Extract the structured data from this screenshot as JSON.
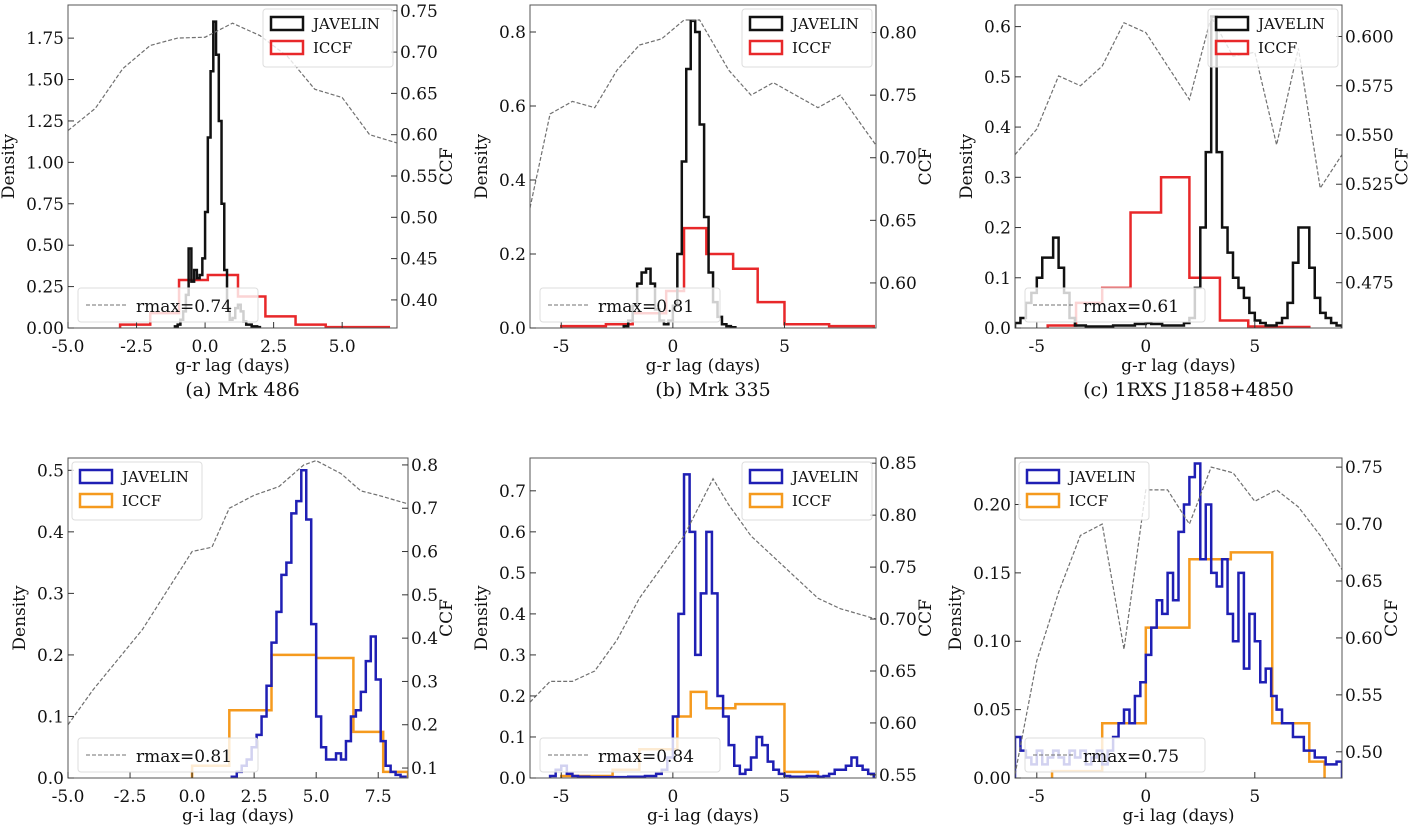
{
  "colors": {
    "javelin_top": "#111111",
    "iccf_top": "#e8282a",
    "javelin_bottom": "#1f1fb4",
    "iccf_bottom": "#f59a1e",
    "ccf": "#707070"
  },
  "chart_data": [
    {
      "type": "bar",
      "caption": "(a) Mrk 486",
      "xlabel": "g-r lag (days)",
      "ylabel": "Density",
      "y2label": "CCF",
      "xlim": [
        -5,
        7
      ],
      "ylim": [
        0,
        1.95
      ],
      "y2lim": [
        0.366,
        0.757
      ],
      "xticks": [
        "-5.0",
        "-2.5",
        "0.0",
        "2.5",
        "5.0"
      ],
      "xtick_values": [
        -5,
        -2.5,
        0,
        2.5,
        5
      ],
      "yticks": [
        "0.00",
        "0.25",
        "0.50",
        "0.75",
        "1.00",
        "1.25",
        "1.50",
        "1.75"
      ],
      "ytick_values": [
        0,
        0.25,
        0.5,
        0.75,
        1.0,
        1.25,
        1.5,
        1.75
      ],
      "y2ticks": [
        "0.40",
        "0.45",
        "0.50",
        "0.55",
        "0.60",
        "0.65",
        "0.70",
        "0.75"
      ],
      "y2tick_values": [
        0.4,
        0.45,
        0.5,
        0.55,
        0.6,
        0.65,
        0.7,
        0.75
      ],
      "legend": [
        "JAVELIN",
        "ICCF"
      ],
      "legend_placement": "top-right",
      "rmax_label": "rmax=0.74",
      "rmax_placement": "lower-left",
      "javelin": {
        "x_start": -1.1,
        "bin_width": 0.1,
        "y": [
          0.01,
          0.02,
          0.05,
          0.1,
          0.2,
          0.48,
          0.28,
          0.35,
          0.3,
          0.32,
          0.42,
          0.7,
          1.15,
          1.55,
          1.85,
          1.65,
          1.25,
          0.75,
          0.35,
          0.12,
          0.05,
          0.06,
          0.12,
          0.14,
          0.1,
          0.04,
          0.02,
          0.02,
          0.01,
          0.01,
          0.005
        ]
      },
      "iccf": {
        "edges": [
          -3.1,
          -2.0,
          -0.95,
          0.1,
          1.2,
          2.2,
          3.3,
          4.4,
          6.7
        ],
        "y": [
          0.02,
          0.09,
          0.29,
          0.32,
          0.19,
          0.07,
          0.02,
          0.005
        ]
      },
      "ccf": {
        "x": [
          -5,
          -4,
          -3,
          -2,
          -1,
          0,
          1,
          2,
          3,
          4,
          5,
          6,
          7
        ],
        "y": [
          0.605,
          0.632,
          0.68,
          0.708,
          0.717,
          0.718,
          0.735,
          0.72,
          0.695,
          0.655,
          0.645,
          0.6,
          0.59
        ]
      }
    },
    {
      "type": "bar",
      "caption": "(b) Mrk 335",
      "xlabel": "g-r lag (days)",
      "ylabel": "Density",
      "y2label": "CCF",
      "xlim": [
        -6.4,
        9.1
      ],
      "ylim": [
        0,
        0.873
      ],
      "y2lim": [
        0.564,
        0.822
      ],
      "xticks": [
        "-5",
        "0",
        "5"
      ],
      "xtick_values": [
        -5,
        0,
        5
      ],
      "yticks": [
        "0.0",
        "0.2",
        "0.4",
        "0.6",
        "0.8"
      ],
      "ytick_values": [
        0,
        0.2,
        0.4,
        0.6,
        0.8
      ],
      "y2ticks": [
        "0.60",
        "0.65",
        "0.70",
        "0.75",
        "0.80"
      ],
      "y2tick_values": [
        0.6,
        0.65,
        0.7,
        0.75,
        0.8
      ],
      "legend": [
        "JAVELIN",
        "ICCF"
      ],
      "legend_placement": "top-right",
      "rmax_label": "rmax=0.81",
      "rmax_placement": "lower-left",
      "javelin": {
        "x_start": -2.2,
        "bin_width": 0.2,
        "y": [
          0.005,
          0.02,
          0.06,
          0.12,
          0.15,
          0.16,
          0.12,
          0.05,
          0.02,
          0.01,
          0.02,
          0.06,
          0.2,
          0.45,
          0.7,
          0.83,
          0.8,
          0.55,
          0.3,
          0.15,
          0.07,
          0.03,
          0.01,
          0.005,
          0.002
        ]
      },
      "iccf": {
        "edges": [
          -5,
          -3,
          -1.8,
          -0.3,
          0.5,
          1.5,
          2.7,
          3.8,
          5,
          7,
          9
        ],
        "y": [
          0.005,
          0.01,
          0.04,
          0.1,
          0.27,
          0.2,
          0.16,
          0.07,
          0.01,
          0.005
        ]
      },
      "ccf": {
        "x": [
          -6.4,
          -5.5,
          -4.5,
          -3.5,
          -2.5,
          -1.5,
          -0.5,
          0.5,
          1.2,
          2.5,
          3.5,
          4.5,
          5.5,
          6.5,
          7.5,
          9.1
        ],
        "y": [
          0.66,
          0.735,
          0.745,
          0.74,
          0.77,
          0.79,
          0.795,
          0.81,
          0.81,
          0.77,
          0.75,
          0.76,
          0.75,
          0.74,
          0.75,
          0.71
        ]
      }
    },
    {
      "type": "bar",
      "caption": "(c) 1RXS J1858+4850",
      "xlabel": "g-r lag (days)",
      "ylabel": "Density",
      "y2label": "CCF",
      "xlim": [
        -6,
        9
      ],
      "ylim": [
        0,
        0.643
      ],
      "y2lim": [
        0.452,
        0.616
      ],
      "xticks": [
        "-5",
        "0",
        "5"
      ],
      "xtick_values": [
        -5,
        0,
        5
      ],
      "yticks": [
        "0.0",
        "0.1",
        "0.2",
        "0.3",
        "0.4",
        "0.5",
        "0.6"
      ],
      "ytick_values": [
        0,
        0.1,
        0.2,
        0.3,
        0.4,
        0.5,
        0.6
      ],
      "y2ticks": [
        "0.475",
        "0.500",
        "0.525",
        "0.550",
        "0.575",
        "0.600"
      ],
      "y2tick_values": [
        0.475,
        0.5,
        0.525,
        0.55,
        0.575,
        0.6
      ],
      "legend": [
        "JAVELIN",
        "ICCF"
      ],
      "legend_placement": "top-right",
      "rmax_label": "rmax=0.61",
      "rmax_placement": "lower-left",
      "javelin": {
        "x_start": -6,
        "bin_width": 0.25,
        "y": [
          0.01,
          0.02,
          0.05,
          0.07,
          0.1,
          0.14,
          0.14,
          0.18,
          0.12,
          0.07,
          0.02,
          0.005,
          0.005,
          0.003,
          0.003,
          0.003,
          0.003,
          0.003,
          0.005,
          0.005,
          0.005,
          0.005,
          0.008,
          0.008,
          0.01,
          0.008,
          0.008,
          0.005,
          0.005,
          0.005,
          0.005,
          0.01,
          0.02,
          0.08,
          0.2,
          0.35,
          0.62,
          0.35,
          0.2,
          0.15,
          0.1,
          0.08,
          0.06,
          0.03,
          0.015,
          0.01,
          0.005,
          0.005,
          0.01,
          0.02,
          0.05,
          0.13,
          0.2,
          0.2,
          0.12,
          0.06,
          0.03,
          0.02,
          0.01,
          0.005
        ]
      },
      "iccf": {
        "edges": [
          -4.5,
          -3.2,
          -2,
          -0.7,
          0.7,
          2,
          3.4,
          4.7,
          6,
          7.5
        ],
        "y": [
          0.005,
          0.05,
          0.08,
          0.23,
          0.3,
          0.1,
          0.015,
          0.003,
          0.002
        ]
      },
      "ccf": {
        "x": [
          -6,
          -5,
          -4,
          -3,
          -2,
          -1,
          0,
          1,
          2,
          3,
          4,
          5,
          6,
          7,
          8,
          9
        ],
        "y": [
          0.54,
          0.553,
          0.58,
          0.575,
          0.585,
          0.607,
          0.602,
          0.585,
          0.568,
          0.61,
          0.59,
          0.592,
          0.545,
          0.594,
          0.523,
          0.54
        ]
      }
    },
    {
      "type": "bar",
      "caption": "",
      "xlabel": "g-i lag (days)",
      "ylabel": "Density",
      "y2label": "CCF",
      "xlim": [
        -5,
        8.7
      ],
      "ylim": [
        0,
        0.52
      ],
      "y2lim": [
        0.077,
        0.816
      ],
      "xticks": [
        "-5.0",
        "-2.5",
        "0.0",
        "2.5",
        "5.0",
        "7.5"
      ],
      "xtick_values": [
        -5,
        -2.5,
        0,
        2.5,
        5,
        7.5
      ],
      "yticks": [
        "0.0",
        "0.1",
        "0.2",
        "0.3",
        "0.4",
        "0.5"
      ],
      "ytick_values": [
        0,
        0.1,
        0.2,
        0.3,
        0.4,
        0.5
      ],
      "y2ticks": [
        "0.1",
        "0.2",
        "0.3",
        "0.4",
        "0.5",
        "0.6",
        "0.7",
        "0.8"
      ],
      "y2tick_values": [
        0.1,
        0.2,
        0.3,
        0.4,
        0.5,
        0.6,
        0.7,
        0.8
      ],
      "legend": [
        "JAVELIN",
        "ICCF"
      ],
      "legend_placement": "top-left",
      "rmax_label": "rmax=0.81",
      "rmax_placement": "lower-left",
      "javelin": {
        "x_start": 1.6,
        "bin_width": 0.2,
        "y": [
          0.002,
          0.01,
          0.02,
          0.03,
          0.05,
          0.07,
          0.1,
          0.15,
          0.22,
          0.27,
          0.33,
          0.35,
          0.43,
          0.45,
          0.5,
          0.42,
          0.25,
          0.1,
          0.05,
          0.03,
          0.03,
          0.04,
          0.03,
          0.06,
          0.1,
          0.11,
          0.14,
          0.19,
          0.23,
          0.16,
          0.06,
          0.02,
          0.01,
          0.005,
          0.002
        ]
      },
      "iccf": {
        "edges": [
          0,
          1.5,
          3.2,
          5.0,
          6.5,
          7.7,
          8.7
        ],
        "y": [
          0.02,
          0.11,
          0.2,
          0.195,
          0.075,
          0.01
        ]
      },
      "ccf": {
        "x": [
          -5,
          -4,
          -3,
          -2,
          -1,
          0,
          0.8,
          1.5,
          2.5,
          3.5,
          4.5,
          5,
          6,
          6.8,
          7.5,
          8.7
        ],
        "y": [
          0.2,
          0.28,
          0.35,
          0.42,
          0.51,
          0.6,
          0.61,
          0.7,
          0.73,
          0.75,
          0.8,
          0.81,
          0.78,
          0.74,
          0.73,
          0.71
        ]
      }
    },
    {
      "type": "bar",
      "caption": "",
      "xlabel": "g-i lag (days)",
      "ylabel": "Density",
      "y2label": "CCF",
      "xlim": [
        -6.4,
        9.1
      ],
      "ylim": [
        0,
        0.78
      ],
      "y2lim": [
        0.547,
        0.855
      ],
      "xticks": [
        "-5",
        "0",
        "5"
      ],
      "xtick_values": [
        -5,
        0,
        5
      ],
      "yticks": [
        "0.0",
        "0.1",
        "0.2",
        "0.3",
        "0.4",
        "0.5",
        "0.6",
        "0.7"
      ],
      "ytick_values": [
        0,
        0.1,
        0.2,
        0.3,
        0.4,
        0.5,
        0.6,
        0.7
      ],
      "y2ticks": [
        "0.55",
        "0.60",
        "0.65",
        "0.70",
        "0.75",
        "0.80",
        "0.85"
      ],
      "y2tick_values": [
        0.55,
        0.6,
        0.65,
        0.7,
        0.75,
        0.8,
        0.85
      ],
      "legend": [
        "JAVELIN",
        "ICCF"
      ],
      "legend_placement": "top-right",
      "rmax_label": "rmax=0.84",
      "rmax_placement": "lower-left",
      "javelin": {
        "x_start": -5.5,
        "bin_width": 0.25,
        "y": [
          0.005,
          0.02,
          0.03,
          0.01,
          0.005,
          0.003,
          0.003,
          0.002,
          0.002,
          0.002,
          0.002,
          0.002,
          0.002,
          0.002,
          0.003,
          0.003,
          0.003,
          0.005,
          0.005,
          0.01,
          0.02,
          0.05,
          0.15,
          0.4,
          0.74,
          0.6,
          0.3,
          0.45,
          0.6,
          0.45,
          0.2,
          0.15,
          0.08,
          0.03,
          0.01,
          0.02,
          0.05,
          0.1,
          0.08,
          0.04,
          0.02,
          0.01,
          0.005,
          0.003,
          0.003,
          0.003,
          0.005,
          0.005,
          0.003,
          0.005,
          0.01,
          0.02,
          0.02,
          0.03,
          0.05,
          0.03,
          0.02,
          0.01
        ]
      },
      "iccf": {
        "edges": [
          -5,
          -2.7,
          -1.5,
          0.2,
          0.8,
          1.5,
          2.8,
          5.0,
          6.5
        ],
        "y": [
          0.005,
          0.02,
          0.07,
          0.15,
          0.21,
          0.17,
          0.18,
          0.015
        ]
      },
      "ccf": {
        "x": [
          -6.4,
          -5.5,
          -4.5,
          -3.5,
          -2.5,
          -1.5,
          -0.5,
          0.5,
          1.8,
          2.5,
          3.5,
          4.5,
          5.5,
          6.5,
          7.5,
          9.1
        ],
        "y": [
          0.62,
          0.64,
          0.64,
          0.65,
          0.68,
          0.72,
          0.75,
          0.78,
          0.835,
          0.81,
          0.78,
          0.76,
          0.74,
          0.72,
          0.71,
          0.7
        ]
      }
    },
    {
      "type": "bar",
      "caption": "",
      "xlabel": "g-i lag (days)",
      "ylabel": "Density",
      "y2label": "CCF",
      "xlim": [
        -6,
        9
      ],
      "ylim": [
        0,
        0.234
      ],
      "y2lim": [
        0.477,
        0.758
      ],
      "xticks": [
        "-5",
        "0",
        "5"
      ],
      "xtick_values": [
        -5,
        0,
        5
      ],
      "yticks": [
        "0.00",
        "0.05",
        "0.10",
        "0.15",
        "0.20"
      ],
      "ytick_values": [
        0,
        0.05,
        0.1,
        0.15,
        0.2
      ],
      "y2ticks": [
        "0.50",
        "0.55",
        "0.60",
        "0.65",
        "0.70",
        "0.75"
      ],
      "y2tick_values": [
        0.5,
        0.55,
        0.6,
        0.65,
        0.7,
        0.75
      ],
      "legend": [
        "JAVELIN",
        "ICCF"
      ],
      "legend_placement": "top-left",
      "rmax_label": "rmax=0.75",
      "rmax_placement": "lower-left",
      "javelin": {
        "x_start": -6,
        "bin_width": 0.25,
        "y": [
          0.03,
          0.02,
          0.015,
          0.01,
          0.02,
          0.01,
          0.015,
          0.02,
          0.015,
          0.01,
          0.02,
          0.015,
          0.02,
          0.01,
          0.015,
          0.02,
          0.01,
          0.02,
          0.03,
          0.04,
          0.05,
          0.04,
          0.06,
          0.07,
          0.09,
          0.11,
          0.13,
          0.12,
          0.15,
          0.13,
          0.18,
          0.2,
          0.22,
          0.23,
          0.16,
          0.2,
          0.15,
          0.14,
          0.16,
          0.12,
          0.1,
          0.15,
          0.08,
          0.12,
          0.1,
          0.07,
          0.08,
          0.06,
          0.05,
          0.04,
          0.04,
          0.03,
          0.03,
          0.02,
          0.02,
          0.015,
          0.015,
          0.01,
          0.01,
          0.012
        ]
      },
      "iccf": {
        "edges": [
          -4.3,
          -2,
          0,
          2,
          3.9,
          5.8,
          7.5,
          8.2
        ],
        "y": [
          0.005,
          0.04,
          0.11,
          0.16,
          0.165,
          0.04,
          0.012
        ]
      },
      "ccf": {
        "x": [
          -6,
          -5,
          -4,
          -3,
          -2,
          -1,
          0,
          1,
          2,
          3,
          4,
          5,
          6,
          7,
          8,
          9
        ],
        "y": [
          0.48,
          0.58,
          0.64,
          0.69,
          0.7,
          0.59,
          0.73,
          0.73,
          0.7,
          0.75,
          0.745,
          0.72,
          0.73,
          0.715,
          0.69,
          0.66
        ]
      }
    }
  ]
}
